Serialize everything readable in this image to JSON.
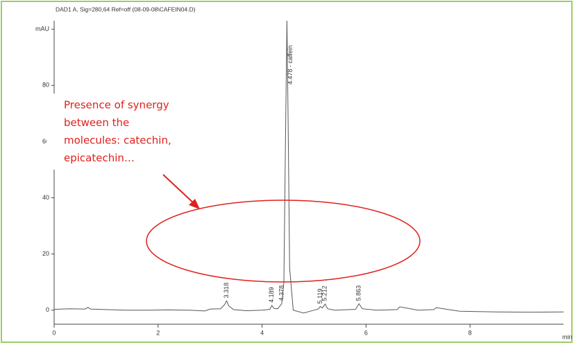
{
  "chart_data": {
    "type": "line",
    "title": "DAD1 A, Sig=280,64 Ref=off (08-09-08\\CAFEIN04.D)",
    "x_label": "min",
    "xlim": [
      0,
      9.8
    ],
    "xticks": [
      0,
      2,
      4,
      6,
      8
    ],
    "ylim": [
      -5,
      103
    ],
    "yticks": [
      0,
      20,
      40,
      60,
      80,
      {
        "value": 100,
        "label": "mAU"
      }
    ],
    "series": [
      {
        "color": "#555555",
        "x": [
          0,
          0.3,
          0.6,
          0.65,
          0.7,
          1.0,
          1.4,
          1.8,
          2.2,
          2.6,
          2.9,
          3.0,
          3.2,
          3.28,
          3.318,
          3.36,
          3.45,
          3.7,
          4.0,
          4.15,
          4.189,
          4.23,
          4.3,
          4.378,
          4.42,
          4.45,
          4.478,
          4.5,
          4.53,
          4.6,
          4.8,
          5.0,
          5.08,
          5.119,
          5.16,
          5.212,
          5.26,
          5.4,
          5.8,
          5.863,
          5.93,
          6.2,
          6.6,
          6.65,
          7.0,
          7.3,
          7.35,
          7.8,
          8.5,
          9.2,
          9.8
        ],
        "values": [
          0.3,
          0.5,
          0.4,
          1.0,
          0.4,
          0.2,
          0,
          0,
          0.1,
          0,
          -0.3,
          0.4,
          0.5,
          2,
          3.3,
          1.5,
          0.2,
          -0.2,
          0,
          0.3,
          1.7,
          0.6,
          0.5,
          2.3,
          10,
          60,
          103,
          70,
          15,
          0,
          -1,
          0,
          0.4,
          1.3,
          0.8,
          2.2,
          0.5,
          0,
          0.3,
          2.3,
          0.5,
          0,
          0.2,
          1.2,
          0,
          0.2,
          0.9,
          -0.4,
          -0.6,
          -0.7,
          -0.6
        ]
      }
    ],
    "peaks": [
      3.318,
      4.189,
      4.378,
      {
        "value": 4.478,
        "label": "4.478 - caffein"
      },
      5.119,
      5.212,
      5.863
    ],
    "annotation": {
      "lines": [
        "Presence of synergy",
        "between the",
        "molecules: catechin,",
        "epicatechin…"
      ],
      "color": "#e0201c"
    }
  }
}
